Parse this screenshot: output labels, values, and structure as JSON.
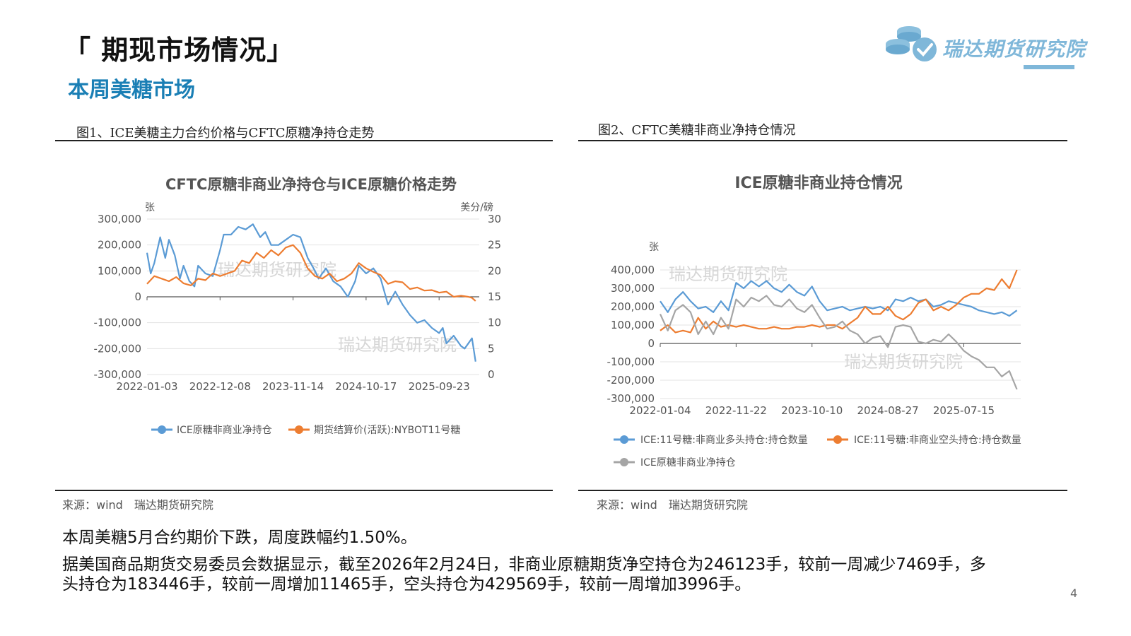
{
  "header": {
    "title": "「 期现市场情况」",
    "subtitle": "本周美糖市场",
    "logo_text": "瑞达期货研究院"
  },
  "figures": [
    {
      "caption": "图1、ICE美糖主力合约价格与CFTC原糖净持仓走势",
      "source": "来源：wind　瑞达期货研究院"
    },
    {
      "caption": "图2、CFTC美糖非商业净持仓情况",
      "source": "来源：wind　瑞达期货研究院"
    }
  ],
  "watermark": "瑞达期货研究院",
  "body": {
    "para1": "本周美糖5月合约期价下跌，周度跌幅约1.50%。",
    "para2_line1": "据美国商品期货交易委员会数据显示，截至2026年2月24日，非商业原糖期货净空持仓为246123手，较前一周减少7469手，多",
    "para2_line2": "头持仓为183446手，较前一周增加11465手，空头持仓为429569手，较前一周增加3996手。"
  },
  "page_number": "4",
  "colors": {
    "blue": "#5b9bd5",
    "orange": "#ed7d31",
    "gray": "#a5a5a5",
    "title_blue": "#1a7fb5"
  },
  "chart_data": [
    {
      "type": "line",
      "title": "CFTC原糖非商业净持仓与ICE原糖价格走势",
      "ylabel_left": "张",
      "ylabel_right": "美分/磅",
      "ylim_left": [
        -300000,
        300000
      ],
      "ylim_right": [
        0,
        30
      ],
      "yticks_left": [
        "300,000",
        "200,000",
        "100,000",
        "0",
        "-100,000",
        "-200,000",
        "-300,000"
      ],
      "yticks_right": [
        "30",
        "25",
        "20",
        "15",
        "10",
        "5",
        "0"
      ],
      "x_tick_labels": [
        "2022-01-03",
        "2022-12-08",
        "2023-11-14",
        "2024-10-17",
        "2025-09-23"
      ],
      "x_range": [
        0,
        4.55
      ],
      "series": [
        {
          "name": "ICE原糖非商业净持仓",
          "axis": "left",
          "color": "#5b9bd5",
          "x": [
            0,
            0.05,
            0.1,
            0.18,
            0.25,
            0.3,
            0.38,
            0.45,
            0.5,
            0.58,
            0.65,
            0.7,
            0.8,
            0.9,
            1.0,
            1.05,
            1.15,
            1.25,
            1.35,
            1.45,
            1.55,
            1.62,
            1.7,
            1.8,
            1.9,
            2.0,
            2.1,
            2.2,
            2.3,
            2.35,
            2.45,
            2.55,
            2.65,
            2.75,
            2.85,
            2.9,
            3.0,
            3.1,
            3.2,
            3.3,
            3.4,
            3.5,
            3.6,
            3.7,
            3.8,
            3.9,
            4.0,
            4.05,
            4.1,
            4.2,
            4.3,
            4.35,
            4.45,
            4.5
          ],
          "y": [
            170000,
            90000,
            130000,
            230000,
            150000,
            220000,
            160000,
            70000,
            120000,
            60000,
            40000,
            120000,
            90000,
            80000,
            180000,
            240000,
            240000,
            270000,
            260000,
            280000,
            230000,
            250000,
            200000,
            200000,
            220000,
            240000,
            230000,
            150000,
            100000,
            70000,
            110000,
            60000,
            40000,
            0,
            60000,
            120000,
            90000,
            110000,
            70000,
            -30000,
            20000,
            -30000,
            -70000,
            -100000,
            -90000,
            -120000,
            -140000,
            -120000,
            -180000,
            -150000,
            -190000,
            -200000,
            -160000,
            -250000
          ]
        },
        {
          "name": "期货结算价(活跃):NYBOT11号糖",
          "axis": "right",
          "color": "#ed7d31",
          "x": [
            0,
            0.1,
            0.2,
            0.3,
            0.4,
            0.5,
            0.6,
            0.7,
            0.8,
            0.9,
            1.0,
            1.1,
            1.2,
            1.3,
            1.4,
            1.5,
            1.6,
            1.7,
            1.8,
            1.9,
            2.0,
            2.1,
            2.2,
            2.3,
            2.4,
            2.5,
            2.6,
            2.7,
            2.8,
            2.9,
            3.0,
            3.1,
            3.2,
            3.3,
            3.4,
            3.5,
            3.6,
            3.7,
            3.8,
            3.9,
            4.0,
            4.1,
            4.2,
            4.3,
            4.4,
            4.45,
            4.5
          ],
          "y": [
            17.5,
            19,
            18.5,
            18,
            18.8,
            17.6,
            17.2,
            18.5,
            18.2,
            19.5,
            19,
            19.5,
            20,
            22,
            21.5,
            23.5,
            22.5,
            24,
            23,
            24.5,
            25,
            23.5,
            20.5,
            19,
            18.5,
            19.5,
            18,
            18.5,
            19.5,
            21.5,
            20.5,
            19.8,
            19.2,
            17.5,
            18,
            17.8,
            16.5,
            16.8,
            16.2,
            16.3,
            15.8,
            16,
            15,
            15.2,
            15,
            14.8,
            14.2
          ]
        }
      ]
    },
    {
      "type": "line",
      "title": "ICE原糖非商业持仓情况",
      "ylabel": "张",
      "ylim": [
        -300000,
        400000
      ],
      "yticks": [
        "400,000",
        "300,000",
        "200,000",
        "100,000",
        "0",
        "-100,000",
        "-200,000",
        "-300,000"
      ],
      "x_tick_labels": [
        "2022-01-04",
        "2022-11-22",
        "2023-10-10",
        "2024-08-27",
        "2025-07-15"
      ],
      "x_range": [
        0,
        4.75
      ],
      "series": [
        {
          "name": "ICE:11号糖:非商业多头持仓:持仓数量",
          "color": "#5b9bd5",
          "x": [
            0,
            0.1,
            0.2,
            0.3,
            0.4,
            0.5,
            0.6,
            0.7,
            0.8,
            0.9,
            1.0,
            1.1,
            1.2,
            1.3,
            1.4,
            1.5,
            1.6,
            1.7,
            1.8,
            1.9,
            2.0,
            2.1,
            2.2,
            2.3,
            2.4,
            2.5,
            2.6,
            2.7,
            2.8,
            2.9,
            3.0,
            3.1,
            3.2,
            3.3,
            3.4,
            3.5,
            3.6,
            3.7,
            3.8,
            3.9,
            4.0,
            4.1,
            4.2,
            4.3,
            4.4,
            4.5,
            4.6,
            4.7
          ],
          "y": [
            230000,
            170000,
            240000,
            280000,
            230000,
            190000,
            200000,
            170000,
            230000,
            180000,
            330000,
            300000,
            340000,
            310000,
            340000,
            300000,
            280000,
            320000,
            280000,
            260000,
            310000,
            230000,
            180000,
            190000,
            200000,
            180000,
            190000,
            200000,
            190000,
            200000,
            180000,
            240000,
            230000,
            250000,
            230000,
            240000,
            200000,
            210000,
            230000,
            220000,
            210000,
            200000,
            180000,
            170000,
            160000,
            170000,
            150000,
            180000
          ]
        },
        {
          "name": "ICE:11号糖:非商业空头持仓:持仓数量",
          "color": "#ed7d31",
          "x": [
            0,
            0.1,
            0.2,
            0.3,
            0.4,
            0.5,
            0.6,
            0.7,
            0.8,
            0.9,
            1.0,
            1.1,
            1.2,
            1.3,
            1.4,
            1.5,
            1.6,
            1.7,
            1.8,
            1.9,
            2.0,
            2.1,
            2.2,
            2.3,
            2.4,
            2.5,
            2.6,
            2.7,
            2.8,
            2.9,
            3.0,
            3.1,
            3.2,
            3.3,
            3.4,
            3.5,
            3.6,
            3.7,
            3.8,
            3.9,
            4.0,
            4.1,
            4.2,
            4.3,
            4.4,
            4.5,
            4.6,
            4.7
          ],
          "y": [
            70000,
            100000,
            60000,
            70000,
            60000,
            140000,
            80000,
            120000,
            90000,
            100000,
            90000,
            100000,
            90000,
            80000,
            80000,
            90000,
            80000,
            80000,
            90000,
            90000,
            100000,
            90000,
            100000,
            100000,
            80000,
            110000,
            140000,
            200000,
            160000,
            160000,
            200000,
            150000,
            130000,
            160000,
            220000,
            240000,
            180000,
            200000,
            180000,
            210000,
            250000,
            270000,
            270000,
            300000,
            290000,
            350000,
            300000,
            400000
          ]
        },
        {
          "name": "ICE原糖非商业净持仓",
          "color": "#a5a5a5",
          "x": [
            0,
            0.1,
            0.2,
            0.3,
            0.4,
            0.5,
            0.6,
            0.7,
            0.8,
            0.9,
            1.0,
            1.1,
            1.2,
            1.3,
            1.4,
            1.5,
            1.6,
            1.7,
            1.8,
            1.9,
            2.0,
            2.1,
            2.2,
            2.3,
            2.4,
            2.5,
            2.6,
            2.7,
            2.8,
            2.9,
            3.0,
            3.1,
            3.2,
            3.3,
            3.4,
            3.5,
            3.6,
            3.7,
            3.8,
            3.9,
            4.0,
            4.1,
            4.2,
            4.3,
            4.4,
            4.5,
            4.6,
            4.7
          ],
          "y": [
            160000,
            70000,
            180000,
            210000,
            170000,
            50000,
            120000,
            50000,
            140000,
            80000,
            240000,
            200000,
            250000,
            230000,
            260000,
            210000,
            200000,
            240000,
            190000,
            170000,
            210000,
            140000,
            80000,
            90000,
            120000,
            70000,
            50000,
            0,
            30000,
            40000,
            -20000,
            90000,
            100000,
            90000,
            10000,
            0,
            20000,
            10000,
            50000,
            10000,
            -40000,
            -70000,
            -90000,
            -130000,
            -130000,
            -180000,
            -150000,
            -250000
          ]
        }
      ]
    }
  ]
}
